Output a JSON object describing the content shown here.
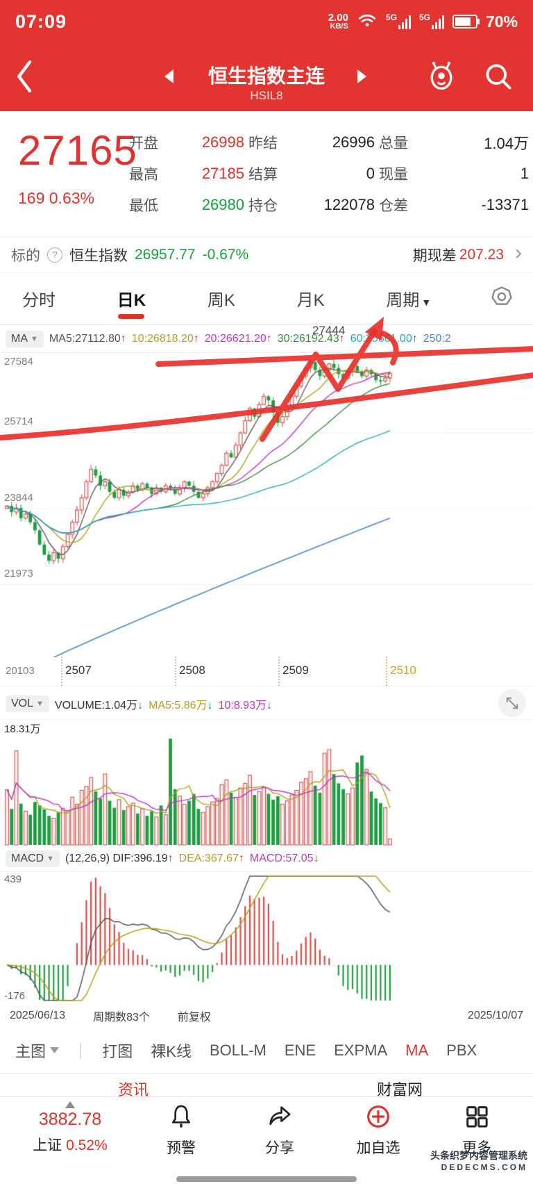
{
  "status_bar": {
    "time": "07:09",
    "net_speed": "2.00",
    "net_unit": "KB/S",
    "carrier1": "5G",
    "carrier2": "5G",
    "battery_pct": "70%"
  },
  "header": {
    "title": "恒生指数主连",
    "code": "HSIL8"
  },
  "quote": {
    "price": "27165",
    "change": "169 0.63%",
    "rows": [
      [
        {
          "l": "开盘",
          "v": "26998",
          "c": "red"
        },
        {
          "l": "昨结",
          "v": "26996",
          "c": "dark"
        },
        {
          "l": "总量",
          "v": "1.04万",
          "c": "dark"
        }
      ],
      [
        {
          "l": "最高",
          "v": "27185",
          "c": "red"
        },
        {
          "l": "结算",
          "v": "0",
          "c": "dark"
        },
        {
          "l": "现量",
          "v": "1",
          "c": "dark"
        }
      ],
      [
        {
          "l": "最低",
          "v": "26980",
          "c": "green"
        },
        {
          "l": "持仓",
          "v": "122078",
          "c": "dark"
        },
        {
          "l": "仓差",
          "v": "-13371",
          "c": "dark"
        }
      ]
    ]
  },
  "underlying": {
    "label": "标的",
    "name": "恒生指数",
    "price": "26957.77",
    "change": "-0.67%",
    "basis_label": "期现差",
    "basis_value": "207.23",
    "help": "?",
    "chevron": "›"
  },
  "period_tabs": {
    "items": [
      "分时",
      "日K",
      "周K",
      "月K",
      "周期"
    ],
    "active": "日K"
  },
  "ma_legend": {
    "button": "MA",
    "items": [
      {
        "text": "MA5:27112.80",
        "dir": "up",
        "color": "#555555"
      },
      {
        "text": "10:26818.20",
        "dir": "up",
        "color": "#b0a11d"
      },
      {
        "text": "20:26621.20",
        "dir": "up",
        "color": "#c234c2"
      },
      {
        "text": "30:26192.43",
        "dir": "up",
        "color": "#3f8c42"
      },
      {
        "text": "60:25661.00",
        "dir": "up",
        "color": "#2aa7c0"
      },
      {
        "text": "250:2",
        "dir": "",
        "color": "#4a86c8"
      }
    ]
  },
  "vol_legend": {
    "button": "VOL",
    "items": [
      {
        "text": "VOLUME:1.04万",
        "dir": "down",
        "color": "#333333"
      },
      {
        "text": "MA5:5.86万",
        "dir": "down",
        "color": "#b0a11d"
      },
      {
        "text": "10:8.93万",
        "dir": "down",
        "color": "#c234c2"
      }
    ]
  },
  "macd_legend": {
    "button": "MACD",
    "items": [
      {
        "text": "(12,26,9) DIF:396.19",
        "dir": "up",
        "color": "#333333"
      },
      {
        "text": "DEA:367.67",
        "dir": "up",
        "color": "#b0a11d"
      },
      {
        "text": "MACD:57.05",
        "dir": "down",
        "color": "#c234c2"
      }
    ]
  },
  "chart_data": {
    "type": "candlestick",
    "main": {
      "y_labels": [
        "27584",
        "25714",
        "23844",
        "21973"
      ],
      "y_axis_bottom": "20103",
      "x_labels": [
        "2507",
        "2508",
        "2509",
        "2510"
      ],
      "annotation_price": "27444",
      "ylim": [
        20103,
        27584
      ],
      "closes": [
        23900,
        23750,
        23850,
        23600,
        23700,
        23500,
        23300,
        22950,
        22700,
        22550,
        22750,
        22600,
        22900,
        23200,
        23500,
        23800,
        24100,
        24500,
        24800,
        24650,
        24400,
        24500,
        24250,
        24100,
        24300,
        24150,
        24250,
        24400,
        24300,
        24450,
        24350,
        24200,
        24350,
        24250,
        24400,
        24300,
        24200,
        24350,
        24500,
        24400,
        24250,
        24100,
        24200,
        24350,
        24500,
        24700,
        24900,
        25200,
        25100,
        25400,
        25700,
        26000,
        26300,
        26100,
        26400,
        26600,
        26500,
        26200,
        25950,
        26100,
        26350,
        26600,
        26850,
        27100,
        27300,
        27444,
        27250,
        27100,
        27250,
        27400,
        27300,
        27150,
        27050,
        27200,
        27350,
        27200,
        27100,
        27250,
        27150,
        27000,
        26980,
        27050,
        27165
      ],
      "ma250_range": [
        19700,
        23600
      ]
    },
    "volume": {
      "type": "bar",
      "max_label": "18.31万",
      "values": [
        9.5,
        6.2,
        16.2,
        7.1,
        5.8,
        5.2,
        7.4,
        6.8,
        6.1,
        5.0,
        4.6,
        5.6,
        6.3,
        5.9,
        8.2,
        7.0,
        9.4,
        10.1,
        11.6,
        9.2,
        8.0,
        12.2,
        7.6,
        6.4,
        7.8,
        6.0,
        6.6,
        7.2,
        5.4,
        6.2,
        5.0,
        5.8,
        4.8,
        6.8,
        5.2,
        18.31,
        9.6,
        8.4,
        7.0,
        7.6,
        8.8,
        6.2,
        5.6,
        6.6,
        7.4,
        8.0,
        10.4,
        11.2,
        9.0,
        8.2,
        9.8,
        10.6,
        12.0,
        8.6,
        9.2,
        10.0,
        8.8,
        7.8,
        8.4,
        7.0,
        7.6,
        8.6,
        9.4,
        10.8,
        11.4,
        12.6,
        10.2,
        9.0,
        15.8,
        16.4,
        12.2,
        10.6,
        9.6,
        8.8,
        9.8,
        14.2,
        15.4,
        13.0,
        9.2,
        8.0,
        7.2,
        6.4,
        1.04
      ]
    },
    "macd": {
      "type": "line",
      "y_top": "439",
      "y_bottom": "-176",
      "ylim": [
        -176,
        439
      ],
      "params": "(12,26,9)"
    },
    "colors": {
      "up": "#cf4f4c",
      "down": "#1c9e41",
      "ma5": "#5a5a5a",
      "ma10": "#b0a11d",
      "ma20": "#c234c2",
      "ma30": "#3f8c42",
      "ma60": "#2aa7c0",
      "ma250": "#4a86c8",
      "annotation": "#e8312b"
    }
  },
  "footer_dates": {
    "start": "2025/06/13",
    "periods": "周期数83个",
    "adjust": "前复权",
    "end": "2025/10/07"
  },
  "indicator_tabs": {
    "main_label": "主图",
    "items": [
      "打图",
      "裸K线",
      "BOLL-M",
      "ENE",
      "EXPMA",
      "MA",
      "PBX"
    ],
    "active": "MA"
  },
  "subtabs": {
    "left": "资讯",
    "right": "财富网"
  },
  "bottom_nav": {
    "index_value": "3882.78",
    "index_name": "上证",
    "index_change": "0.52%",
    "items": [
      {
        "label": "预警",
        "icon": "bell"
      },
      {
        "label": "分享",
        "icon": "share"
      },
      {
        "label": "加自选",
        "icon": "plus"
      },
      {
        "label": "更多",
        "icon": "grid"
      }
    ]
  },
  "watermark": {
    "line1": "头条织梦内容管理系统",
    "line2": "DEDECMS.COM"
  }
}
